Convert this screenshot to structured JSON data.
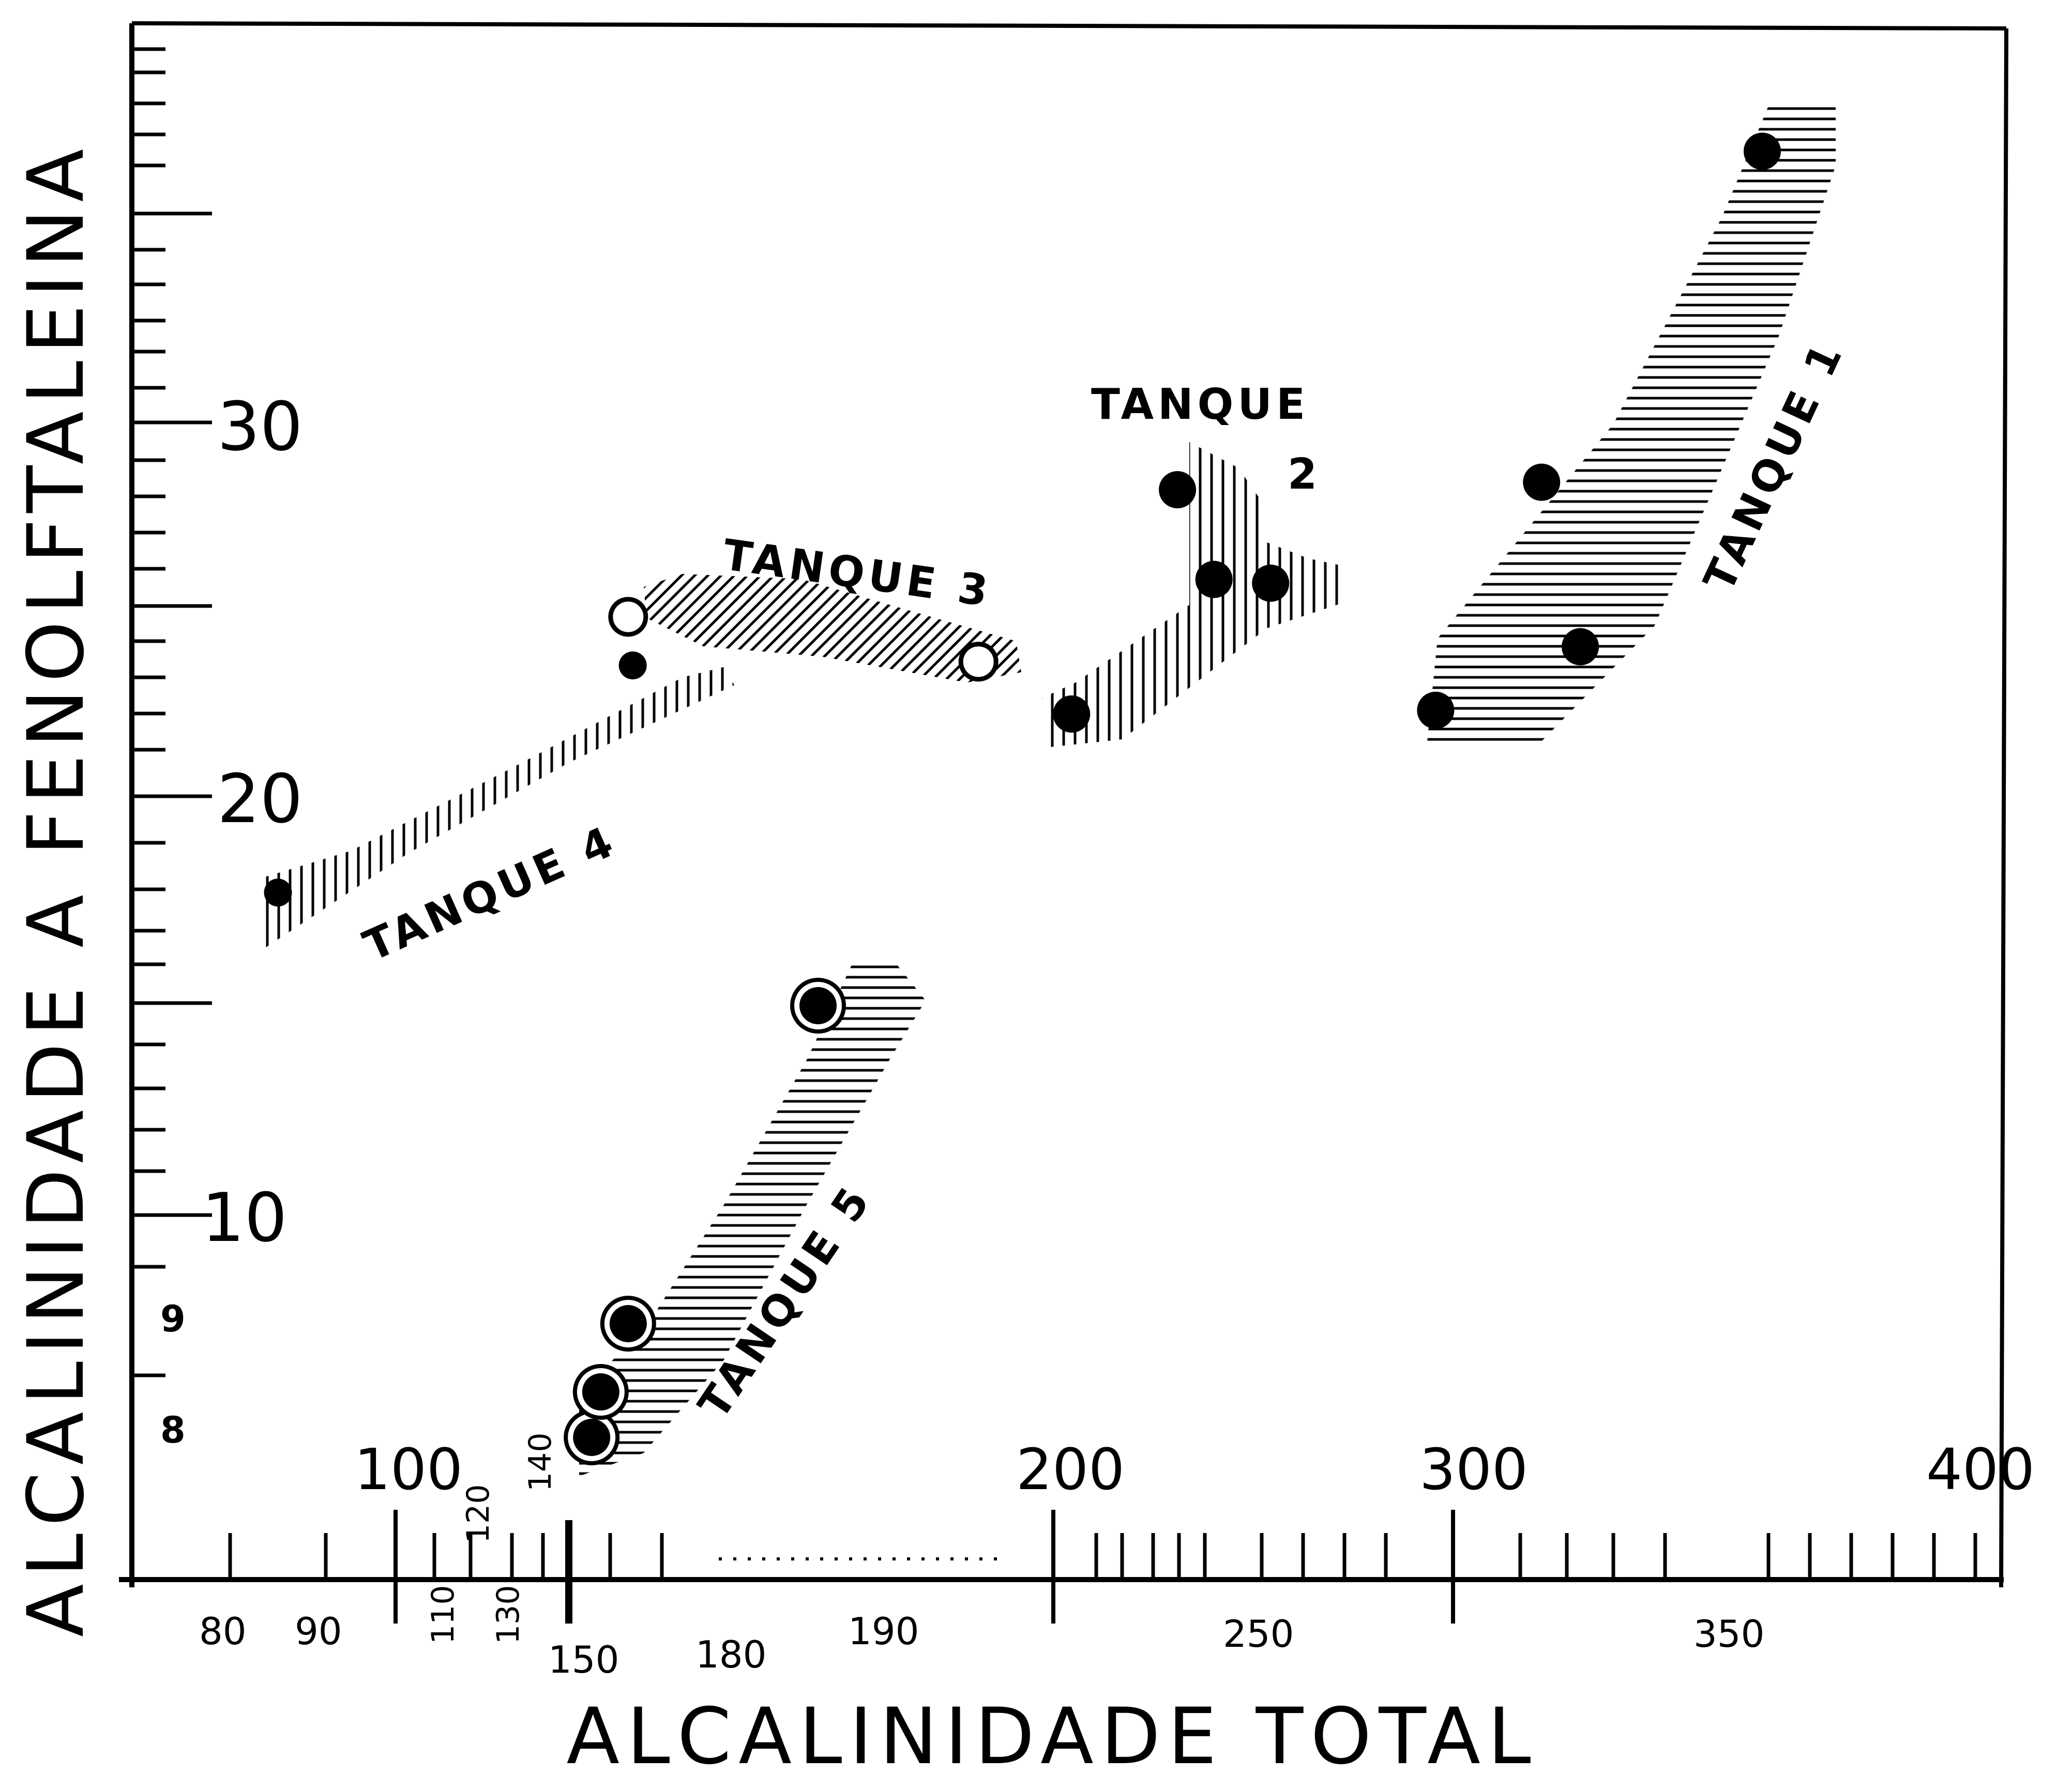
{
  "chart_data": {
    "type": "scatter",
    "title": "",
    "xlabel": "ALCALINIDADE TOTAL",
    "ylabel": "ALCALINIDADE A FENOLFTALEINA",
    "y_tick_labels": [
      "30",
      "20",
      "10",
      "9",
      "8"
    ],
    "x_tick_labels_top": [
      "100",
      "200",
      "300",
      "400"
    ],
    "x_tick_labels_bottom": [
      "80",
      "90",
      "150",
      "180",
      "190",
      "250",
      "350"
    ],
    "x_tick_labels_rotated": [
      "120",
      "140",
      "110",
      "130"
    ],
    "grid": false,
    "series": [
      {
        "name": "TANQUE 1",
        "marker": "filled-circle",
        "hatch": "horizontal",
        "points": [
          {
            "x": 296,
            "y": 22.3
          },
          {
            "x": 316,
            "y": 28.4
          },
          {
            "x": 323,
            "y": 24.0
          },
          {
            "x": 356,
            "y": 38.5
          }
        ]
      },
      {
        "name": "TANQUE 2",
        "marker": "filled-circle",
        "hatch": "vertical",
        "points": [
          {
            "x": 205,
            "y": 22.2
          },
          {
            "x": 234,
            "y": 28.2
          },
          {
            "x": 244,
            "y": 25.8
          },
          {
            "x": 258,
            "y": 25.7
          }
        ]
      },
      {
        "name": "TANQUE 3",
        "marker": "open-circle",
        "hatch": "diagonal",
        "points": [
          {
            "x": 163,
            "y": 24.8
          },
          {
            "x": 196,
            "y": 23.6
          }
        ]
      },
      {
        "name": "TANQUE 4",
        "marker": "filled-circle",
        "hatch": "vertical",
        "points": [
          {
            "x": 85,
            "y": 17.7
          },
          {
            "x": 164,
            "y": 23.5
          }
        ]
      },
      {
        "name": "TANQUE 5",
        "marker": "ringed-filled-circle",
        "hatch": "horizontal",
        "points": [
          {
            "x": 155,
            "y": 8.0
          },
          {
            "x": 157,
            "y": 8.4
          },
          {
            "x": 163,
            "y": 9.0
          },
          {
            "x": 187,
            "y": 15.0
          }
        ]
      }
    ]
  }
}
